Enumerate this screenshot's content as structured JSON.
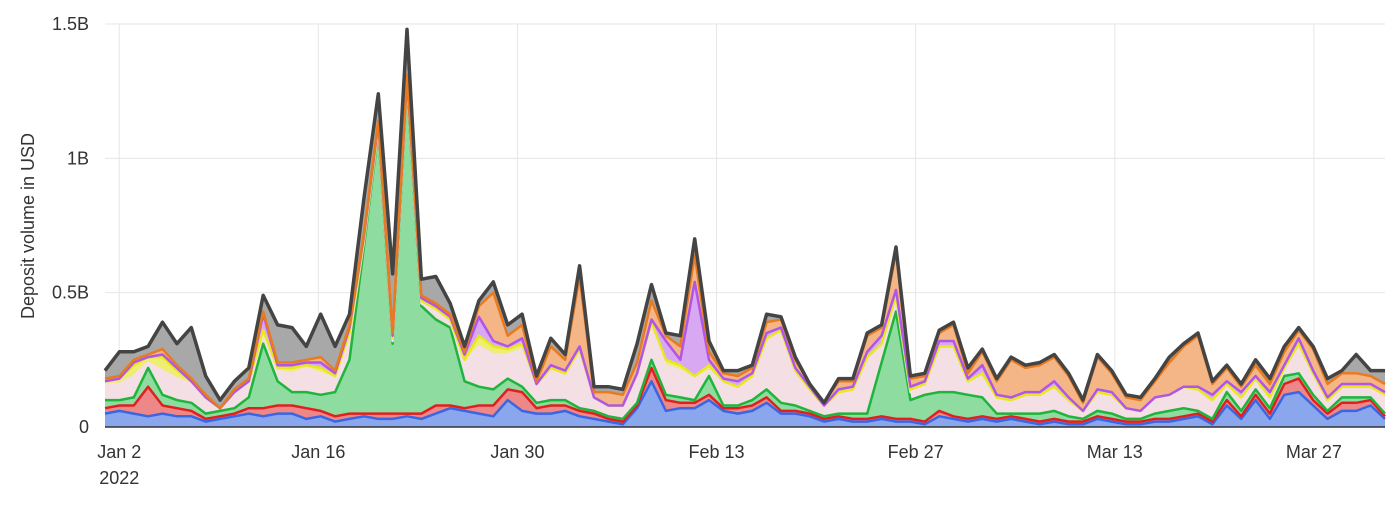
{
  "chart_data": {
    "type": "area",
    "stacked": true,
    "title": "",
    "xlabel": "",
    "ylabel": "Deposit volume in USD",
    "x_start": "2022-01-01",
    "x_end": "2022-04-01",
    "ylim": [
      0,
      1.5
    ],
    "y_unit": "B",
    "y_ticks": [
      {
        "value": 0,
        "label": "0"
      },
      {
        "value": 0.5,
        "label": "0.5B"
      },
      {
        "value": 1.0,
        "label": "1B"
      },
      {
        "value": 1.5,
        "label": "1.5B"
      }
    ],
    "x_ticks": [
      {
        "date": "2022-01-02",
        "label": "Jan 2",
        "sublabel": "2022"
      },
      {
        "date": "2022-01-16",
        "label": "Jan 16",
        "sublabel": ""
      },
      {
        "date": "2022-01-30",
        "label": "Jan 30",
        "sublabel": ""
      },
      {
        "date": "2022-02-13",
        "label": "Feb 13",
        "sublabel": ""
      },
      {
        "date": "2022-02-27",
        "label": "Feb 27",
        "sublabel": ""
      },
      {
        "date": "2022-03-13",
        "label": "Mar 13",
        "sublabel": ""
      },
      {
        "date": "2022-03-27",
        "label": "Mar 27",
        "sublabel": ""
      }
    ],
    "grid": true,
    "legend": "none",
    "outline_color": "#444444",
    "total": [
      0.21,
      0.28,
      0.28,
      0.3,
      0.39,
      0.31,
      0.37,
      0.19,
      0.1,
      0.17,
      0.22,
      0.49,
      0.38,
      0.37,
      0.3,
      0.42,
      0.3,
      0.42,
      0.85,
      1.24,
      0.57,
      1.48,
      0.55,
      0.56,
      0.46,
      0.3,
      0.47,
      0.54,
      0.38,
      0.42,
      0.19,
      0.33,
      0.27,
      0.6,
      0.15,
      0.15,
      0.14,
      0.31,
      0.53,
      0.35,
      0.34,
      0.7,
      0.32,
      0.21,
      0.21,
      0.23,
      0.42,
      0.41,
      0.26,
      0.16,
      0.09,
      0.18,
      0.18,
      0.35,
      0.38,
      0.67,
      0.19,
      0.2,
      0.36,
      0.39,
      0.22,
      0.29,
      0.18,
      0.26,
      0.23,
      0.24,
      0.27,
      0.2,
      0.1,
      0.27,
      0.21,
      0.12,
      0.11,
      0.18,
      0.26,
      0.31,
      0.35,
      0.17,
      0.23,
      0.16,
      0.25,
      0.18,
      0.3,
      0.37,
      0.3,
      0.18,
      0.21,
      0.27,
      0.21,
      0.21
    ],
    "series": [
      {
        "color": "#8aa7ee",
        "stroke": "#3a66e3",
        "values": [
          0.05,
          0.06,
          0.05,
          0.04,
          0.05,
          0.04,
          0.04,
          0.02,
          0.03,
          0.04,
          0.05,
          0.04,
          0.05,
          0.05,
          0.03,
          0.04,
          0.02,
          0.03,
          0.04,
          0.03,
          0.03,
          0.04,
          0.03,
          0.05,
          0.07,
          0.06,
          0.05,
          0.04,
          0.1,
          0.06,
          0.05,
          0.05,
          0.06,
          0.04,
          0.03,
          0.02,
          0.01,
          0.07,
          0.17,
          0.06,
          0.07,
          0.07,
          0.1,
          0.06,
          0.05,
          0.06,
          0.09,
          0.05,
          0.05,
          0.04,
          0.02,
          0.03,
          0.02,
          0.02,
          0.03,
          0.02,
          0.02,
          0.01,
          0.04,
          0.03,
          0.02,
          0.03,
          0.02,
          0.03,
          0.02,
          0.01,
          0.02,
          0.01,
          0.01,
          0.03,
          0.02,
          0.01,
          0.01,
          0.02,
          0.02,
          0.03,
          0.04,
          0.01,
          0.08,
          0.03,
          0.1,
          0.03,
          0.12,
          0.13,
          0.08,
          0.03,
          0.06,
          0.06,
          0.08,
          0.03
        ]
      },
      {
        "color": "#ee8888",
        "stroke": "#e02020",
        "values": [
          0.02,
          0.02,
          0.03,
          0.11,
          0.03,
          0.03,
          0.02,
          0.01,
          0.01,
          0.01,
          0.02,
          0.03,
          0.03,
          0.03,
          0.04,
          0.02,
          0.02,
          0.02,
          0.01,
          0.02,
          0.02,
          0.01,
          0.02,
          0.03,
          0.01,
          0.01,
          0.03,
          0.04,
          0.04,
          0.07,
          0.02,
          0.03,
          0.02,
          0.02,
          0.02,
          0.01,
          0.01,
          0.01,
          0.05,
          0.04,
          0.02,
          0.02,
          0.02,
          0.01,
          0.02,
          0.02,
          0.02,
          0.01,
          0.01,
          0.01,
          0.01,
          0.01,
          0.01,
          0.01,
          0.01,
          0.01,
          0.01,
          0.01,
          0.02,
          0.01,
          0.01,
          0.01,
          0.01,
          0.01,
          0.01,
          0.01,
          0.01,
          0.01,
          0.01,
          0.01,
          0.01,
          0.01,
          0.01,
          0.01,
          0.01,
          0.01,
          0.01,
          0.01,
          0.02,
          0.01,
          0.02,
          0.02,
          0.04,
          0.05,
          0.02,
          0.02,
          0.03,
          0.03,
          0.02,
          0.01
        ]
      },
      {
        "color": "#8fdca0",
        "stroke": "#1fb43c",
        "values": [
          0.03,
          0.02,
          0.03,
          0.07,
          0.04,
          0.03,
          0.03,
          0.02,
          0.02,
          0.02,
          0.04,
          0.24,
          0.09,
          0.05,
          0.06,
          0.06,
          0.09,
          0.2,
          0.62,
          1.05,
          0.26,
          1.22,
          0.4,
          0.32,
          0.29,
          0.1,
          0.07,
          0.06,
          0.04,
          0.02,
          0.02,
          0.02,
          0.02,
          0.01,
          0.01,
          0.01,
          0.01,
          0.01,
          0.03,
          0.02,
          0.02,
          0.01,
          0.07,
          0.01,
          0.01,
          0.02,
          0.03,
          0.03,
          0.02,
          0.01,
          0.01,
          0.01,
          0.02,
          0.02,
          0.2,
          0.4,
          0.07,
          0.1,
          0.07,
          0.09,
          0.09,
          0.07,
          0.02,
          0.01,
          0.02,
          0.03,
          0.03,
          0.02,
          0.01,
          0.02,
          0.02,
          0.01,
          0.01,
          0.02,
          0.03,
          0.03,
          0.01,
          0.01,
          0.03,
          0.02,
          0.02,
          0.02,
          0.03,
          0.02,
          0.02,
          0.01,
          0.02,
          0.02,
          0.01,
          0.01
        ]
      },
      {
        "color": "#f3dfe4",
        "stroke": "#f3dfe4",
        "values": [
          0.06,
          0.06,
          0.08,
          0.02,
          0.09,
          0.08,
          0.07,
          0.05,
          0.01,
          0.05,
          0.05,
          0.04,
          0.04,
          0.07,
          0.09,
          0.08,
          0.05,
          0.08,
          0.02,
          0.01,
          0.01,
          0.01,
          0.01,
          0.03,
          0.02,
          0.07,
          0.15,
          0.13,
          0.09,
          0.14,
          0.06,
          0.11,
          0.09,
          0.2,
          0.04,
          0.03,
          0.04,
          0.1,
          0.12,
          0.11,
          0.1,
          0.08,
          0.02,
          0.08,
          0.06,
          0.08,
          0.18,
          0.26,
          0.12,
          0.07,
          0.04,
          0.07,
          0.08,
          0.2,
          0.06,
          0.05,
          0.03,
          0.03,
          0.16,
          0.16,
          0.04,
          0.08,
          0.05,
          0.04,
          0.06,
          0.06,
          0.08,
          0.05,
          0.03,
          0.06,
          0.06,
          0.04,
          0.03,
          0.05,
          0.05,
          0.07,
          0.07,
          0.06,
          0.02,
          0.04,
          0.03,
          0.03,
          0.02,
          0.1,
          0.07,
          0.03,
          0.03,
          0.03,
          0.03,
          0.06
        ]
      },
      {
        "color": "#eeee70",
        "stroke": "#e8e820",
        "values": [
          0.01,
          0.02,
          0.04,
          0.02,
          0.05,
          0.03,
          0.01,
          0.01,
          0.0,
          0.01,
          0.01,
          0.01,
          0.01,
          0.02,
          0.01,
          0.02,
          0.01,
          0.02,
          0.01,
          0.01,
          0.01,
          0.01,
          0.01,
          0.01,
          0.01,
          0.01,
          0.04,
          0.03,
          0.02,
          0.02,
          0.01,
          0.01,
          0.01,
          0.02,
          0.01,
          0.01,
          0.01,
          0.01,
          0.02,
          0.02,
          0.02,
          0.01,
          0.02,
          0.01,
          0.01,
          0.01,
          0.01,
          0.01,
          0.01,
          0.01,
          0.0,
          0.01,
          0.01,
          0.01,
          0.01,
          0.01,
          0.01,
          0.01,
          0.01,
          0.01,
          0.01,
          0.01,
          0.01,
          0.01,
          0.01,
          0.01,
          0.01,
          0.01,
          0.0,
          0.01,
          0.01,
          0.0,
          0.0,
          0.01,
          0.01,
          0.01,
          0.01,
          0.01,
          0.01,
          0.01,
          0.01,
          0.01,
          0.01,
          0.01,
          0.01,
          0.01,
          0.01,
          0.01,
          0.01,
          0.01
        ]
      },
      {
        "color": "#d8a8f2",
        "stroke": "#b055e8",
        "values": [
          0.0,
          0.0,
          0.01,
          0.0,
          0.01,
          0.01,
          0.0,
          0.0,
          0.0,
          0.0,
          0.0,
          0.06,
          0.01,
          0.01,
          0.01,
          0.02,
          0.01,
          0.02,
          0.01,
          0.01,
          0.01,
          0.01,
          0.01,
          0.01,
          0.01,
          0.02,
          0.07,
          0.02,
          0.01,
          0.02,
          0.0,
          0.01,
          0.01,
          0.01,
          0.0,
          0.0,
          0.0,
          0.0,
          0.01,
          0.07,
          0.02,
          0.35,
          0.02,
          0.01,
          0.02,
          0.01,
          0.02,
          0.01,
          0.01,
          0.01,
          0.0,
          0.01,
          0.01,
          0.02,
          0.03,
          0.02,
          0.01,
          0.01,
          0.02,
          0.02,
          0.01,
          0.03,
          0.01,
          0.01,
          0.01,
          0.01,
          0.02,
          0.01,
          0.0,
          0.01,
          0.01,
          0.0,
          0.0,
          0.0,
          0.0,
          0.0,
          0.01,
          0.02,
          0.01,
          0.02,
          0.01,
          0.02,
          0.01,
          0.02,
          0.01,
          0.01,
          0.01,
          0.01,
          0.01,
          0.01
        ]
      },
      {
        "color": "#f5b687",
        "stroke": "#e87a20",
        "values": [
          0.01,
          0.01,
          0.01,
          0.01,
          0.02,
          0.01,
          0.01,
          0.01,
          0.0,
          0.01,
          0.01,
          0.01,
          0.01,
          0.01,
          0.01,
          0.02,
          0.01,
          0.01,
          0.01,
          0.01,
          0.01,
          0.01,
          0.01,
          0.01,
          0.01,
          0.01,
          0.04,
          0.18,
          0.04,
          0.05,
          0.01,
          0.07,
          0.04,
          0.26,
          0.02,
          0.05,
          0.04,
          0.04,
          0.07,
          0.02,
          0.05,
          0.1,
          0.03,
          0.02,
          0.02,
          0.02,
          0.04,
          0.03,
          0.03,
          0.01,
          0.01,
          0.03,
          0.02,
          0.06,
          0.03,
          0.14,
          0.03,
          0.02,
          0.03,
          0.06,
          0.02,
          0.05,
          0.05,
          0.14,
          0.09,
          0.1,
          0.09,
          0.08,
          0.03,
          0.12,
          0.07,
          0.04,
          0.04,
          0.06,
          0.12,
          0.15,
          0.19,
          0.04,
          0.05,
          0.02,
          0.04,
          0.03,
          0.05,
          0.03,
          0.08,
          0.05,
          0.04,
          0.04,
          0.03,
          0.03
        ]
      },
      {
        "color": "#a8a8a8",
        "stroke": "#8a8a8a",
        "values": [
          0.03,
          0.09,
          0.03,
          0.03,
          0.1,
          0.08,
          0.19,
          0.07,
          0.03,
          0.03,
          0.04,
          0.06,
          0.14,
          0.13,
          0.05,
          0.16,
          0.09,
          0.04,
          0.13,
          0.1,
          0.22,
          0.17,
          0.06,
          0.1,
          0.04,
          0.02,
          0.02,
          0.04,
          0.04,
          0.04,
          0.02,
          0.03,
          0.02,
          0.04,
          0.02,
          0.02,
          0.02,
          0.07,
          0.06,
          0.01,
          0.04,
          0.06,
          0.04,
          0.01,
          0.02,
          0.01,
          0.03,
          0.01,
          0.01,
          0.0,
          0.0,
          0.01,
          0.01,
          0.01,
          0.01,
          0.02,
          0.01,
          0.01,
          0.01,
          0.01,
          0.02,
          0.01,
          0.01,
          0.01,
          0.01,
          0.01,
          0.01,
          0.01,
          0.01,
          0.01,
          0.01,
          0.01,
          0.01,
          0.01,
          0.02,
          0.01,
          0.01,
          0.01,
          0.01,
          0.01,
          0.02,
          0.02,
          0.02,
          0.01,
          0.01,
          0.02,
          0.01,
          0.07,
          0.02,
          0.05
        ]
      }
    ]
  }
}
